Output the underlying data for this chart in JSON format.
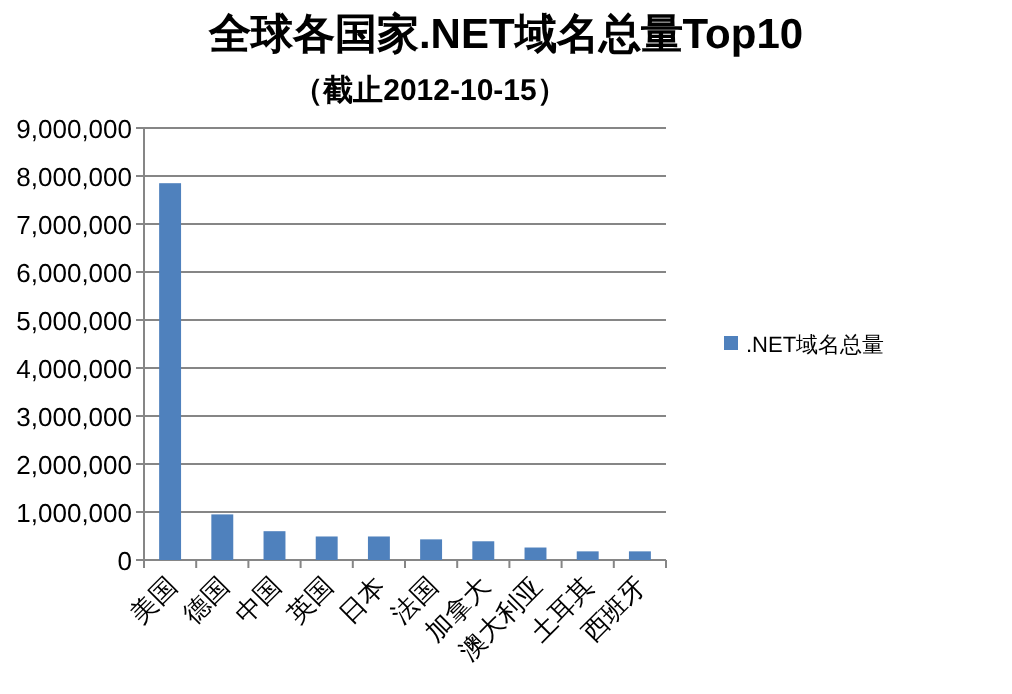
{
  "chart_data": {
    "type": "bar",
    "title": "全球各国家.NET域名总量Top10",
    "subtitle": "（截止2012-10-15）",
    "categories": [
      "美国",
      "德国",
      "中国",
      "英国",
      "日本",
      "法国",
      "加拿大",
      "澳大利亚",
      "土耳其",
      "西班牙"
    ],
    "series": [
      {
        "name": ".NET域名总量",
        "color": "#4f81bd",
        "values": [
          7850000,
          950000,
          600000,
          490000,
          490000,
          430000,
          390000,
          260000,
          180000,
          180000
        ]
      }
    ],
    "ylim": [
      0,
      9000000
    ],
    "yticks": [
      {
        "value": 0,
        "label": "0"
      },
      {
        "value": 1000000,
        "label": "1,000,000"
      },
      {
        "value": 2000000,
        "label": "2,000,000"
      },
      {
        "value": 3000000,
        "label": "3,000,000"
      },
      {
        "value": 4000000,
        "label": "4,000,000"
      },
      {
        "value": 5000000,
        "label": "5,000,000"
      },
      {
        "value": 6000000,
        "label": "6,000,000"
      },
      {
        "value": 7000000,
        "label": "7,000,000"
      },
      {
        "value": 8000000,
        "label": "8,000,000"
      },
      {
        "value": 9000000,
        "label": "9,000,000"
      }
    ],
    "grid": "y",
    "legend": "right"
  }
}
